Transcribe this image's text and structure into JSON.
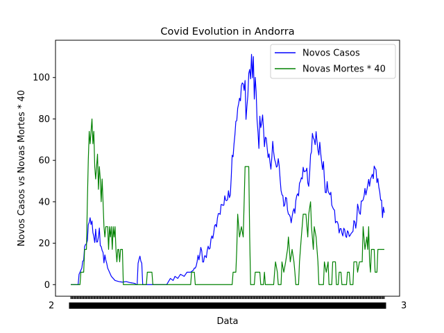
{
  "chart_data": {
    "type": "line",
    "title": "Covid Evolution in Andorra",
    "xlabel": "Data",
    "ylabel": "Novos Casos vs Novas Mortes * 40",
    "ylim": [
      -5.6,
      118
    ],
    "yticks": [
      0,
      20,
      40,
      60,
      80,
      100
    ],
    "x_count": 341,
    "x_tick_labels_overlapping": true,
    "x_tick_label_edge_left": "2",
    "x_tick_label_edge_right": "3",
    "legend_position": "upper-right",
    "grid": false,
    "series": [
      {
        "name": "Novos Casos",
        "color": "#0000ff",
        "anchors": [
          [
            0,
            0
          ],
          [
            8,
            0
          ],
          [
            9,
            5
          ],
          [
            12,
            8
          ],
          [
            15,
            17
          ],
          [
            17,
            20
          ],
          [
            20,
            30
          ],
          [
            21,
            33
          ],
          [
            23,
            28
          ],
          [
            25,
            24
          ],
          [
            26,
            21
          ],
          [
            27,
            24
          ],
          [
            29,
            21
          ],
          [
            31,
            25
          ],
          [
            33,
            18
          ],
          [
            35,
            14
          ],
          [
            37,
            13
          ],
          [
            40,
            8
          ],
          [
            44,
            4
          ],
          [
            48,
            2
          ],
          [
            52,
            1.5
          ],
          [
            56,
            1.2
          ],
          [
            60,
            1.5
          ],
          [
            64,
            1
          ],
          [
            68,
            0.7
          ],
          [
            70,
            0.5
          ],
          [
            71,
            0
          ],
          [
            72,
            0
          ],
          [
            73,
            12
          ],
          [
            77,
            12
          ],
          [
            78,
            0
          ],
          [
            104,
            0
          ],
          [
            108,
            3
          ],
          [
            111,
            2
          ],
          [
            113,
            4
          ],
          [
            116,
            3
          ],
          [
            119,
            5
          ],
          [
            123,
            4
          ],
          [
            126,
            6
          ],
          [
            130,
            6
          ],
          [
            133,
            7
          ],
          [
            138,
            12
          ],
          [
            141,
            17
          ],
          [
            144,
            11
          ],
          [
            147,
            15
          ],
          [
            151,
            19
          ],
          [
            154,
            24
          ],
          [
            158,
            30
          ],
          [
            162,
            36
          ],
          [
            166,
            40
          ],
          [
            170,
            42
          ],
          [
            173,
            44
          ],
          [
            175,
            60
          ],
          [
            178,
            72
          ],
          [
            180,
            82
          ],
          [
            183,
            89
          ],
          [
            186,
            97
          ],
          [
            189,
            96
          ],
          [
            190,
            80
          ],
          [
            192,
            93
          ],
          [
            194,
            105
          ],
          [
            195,
            100
          ],
          [
            196,
            112
          ],
          [
            197,
            97
          ],
          [
            198,
            112
          ],
          [
            199,
            90
          ],
          [
            200,
            100
          ],
          [
            202,
            82
          ],
          [
            204,
            65
          ],
          [
            205,
            80
          ],
          [
            207,
            77
          ],
          [
            208,
            81
          ],
          [
            210,
            69
          ],
          [
            212,
            70
          ],
          [
            214,
            63
          ],
          [
            217,
            57
          ],
          [
            219,
            67
          ],
          [
            221,
            62
          ],
          [
            223,
            55
          ],
          [
            225,
            62
          ],
          [
            227,
            50
          ],
          [
            229,
            44
          ],
          [
            231,
            38
          ],
          [
            233,
            42
          ],
          [
            236,
            35
          ],
          [
            238,
            31
          ],
          [
            240,
            33
          ],
          [
            243,
            37
          ],
          [
            245,
            42
          ],
          [
            248,
            47
          ],
          [
            250,
            52
          ],
          [
            253,
            55
          ],
          [
            255,
            56
          ],
          [
            258,
            48
          ],
          [
            260,
            60
          ],
          [
            262,
            73
          ],
          [
            264,
            68
          ],
          [
            266,
            73
          ],
          [
            268,
            64
          ],
          [
            270,
            67
          ],
          [
            272,
            59
          ],
          [
            274,
            57
          ],
          [
            276,
            45
          ],
          [
            278,
            47
          ],
          [
            281,
            44
          ],
          [
            284,
            38
          ],
          [
            287,
            32
          ],
          [
            290,
            28
          ],
          [
            294,
            25
          ],
          [
            296,
            26
          ],
          [
            299,
            24
          ],
          [
            302,
            25
          ],
          [
            304,
            23
          ],
          [
            307,
            30
          ],
          [
            309,
            28
          ],
          [
            311,
            37
          ],
          [
            314,
            35
          ],
          [
            316,
            41
          ],
          [
            320,
            45
          ],
          [
            324,
            50
          ],
          [
            327,
            52
          ],
          [
            329,
            56
          ],
          [
            331,
            55
          ],
          [
            333,
            49
          ],
          [
            336,
            43
          ],
          [
            338,
            33
          ],
          [
            339,
            38
          ],
          [
            340,
            36
          ]
        ]
      },
      {
        "name": "Novas Mortes * 40",
        "color": "#008000",
        "anchors": [
          [
            0,
            0
          ],
          [
            10,
            0
          ],
          [
            11,
            6
          ],
          [
            14,
            6
          ],
          [
            15,
            17
          ],
          [
            17,
            17
          ],
          [
            18,
            40
          ],
          [
            19,
            60
          ],
          [
            20,
            74
          ],
          [
            21,
            68
          ],
          [
            22,
            74
          ],
          [
            23,
            80
          ],
          [
            24,
            68
          ],
          [
            25,
            74
          ],
          [
            26,
            57
          ],
          [
            27,
            51
          ],
          [
            28,
            57
          ],
          [
            29,
            63
          ],
          [
            30,
            46
          ],
          [
            31,
            57
          ],
          [
            32,
            51
          ],
          [
            33,
            40
          ],
          [
            34,
            51
          ],
          [
            35,
            40
          ],
          [
            36,
            28
          ],
          [
            37,
            23
          ],
          [
            38,
            28
          ],
          [
            40,
            28
          ],
          [
            41,
            17
          ],
          [
            42,
            28
          ],
          [
            43,
            23
          ],
          [
            44,
            28
          ],
          [
            45,
            17
          ],
          [
            46,
            28
          ],
          [
            47,
            23
          ],
          [
            48,
            28
          ],
          [
            49,
            17
          ],
          [
            50,
            11
          ],
          [
            51,
            17
          ],
          [
            52,
            17
          ],
          [
            53,
            11
          ],
          [
            54,
            17
          ],
          [
            56,
            17
          ],
          [
            57,
            0
          ],
          [
            82,
            0
          ],
          [
            83,
            6
          ],
          [
            88,
            6
          ],
          [
            89,
            0
          ],
          [
            130,
            0
          ],
          [
            131,
            6
          ],
          [
            134,
            6
          ],
          [
            135,
            0
          ],
          [
            175,
            0
          ],
          [
            176,
            6
          ],
          [
            179,
            6
          ],
          [
            180,
            17
          ],
          [
            181,
            34
          ],
          [
            183,
            23
          ],
          [
            185,
            28
          ],
          [
            187,
            23
          ],
          [
            189,
            57
          ],
          [
            193,
            57
          ],
          [
            194,
            23
          ],
          [
            195,
            0
          ],
          [
            199,
            0
          ],
          [
            200,
            6
          ],
          [
            205,
            6
          ],
          [
            206,
            0
          ],
          [
            209,
            0
          ],
          [
            210,
            6
          ],
          [
            211,
            0
          ],
          [
            220,
            0
          ],
          [
            221,
            6
          ],
          [
            222,
            11
          ],
          [
            224,
            6
          ],
          [
            225,
            0
          ],
          [
            228,
            0
          ],
          [
            229,
            11
          ],
          [
            231,
            6
          ],
          [
            233,
            11
          ],
          [
            235,
            17
          ],
          [
            236,
            23
          ],
          [
            237,
            17
          ],
          [
            238,
            11
          ],
          [
            240,
            17
          ],
          [
            242,
            11
          ],
          [
            243,
            6
          ],
          [
            244,
            0
          ],
          [
            247,
            0
          ],
          [
            248,
            11
          ],
          [
            250,
            23
          ],
          [
            252,
            34
          ],
          [
            255,
            34
          ],
          [
            257,
            23
          ],
          [
            258,
            34
          ],
          [
            260,
            40
          ],
          [
            261,
            28
          ],
          [
            263,
            17
          ],
          [
            264,
            28
          ],
          [
            266,
            23
          ],
          [
            268,
            11
          ],
          [
            269,
            0
          ],
          [
            274,
            0
          ],
          [
            275,
            11
          ],
          [
            277,
            6
          ],
          [
            279,
            11
          ],
          [
            280,
            0
          ],
          [
            283,
            0
          ],
          [
            284,
            11
          ],
          [
            287,
            11
          ],
          [
            288,
            0
          ],
          [
            290,
            0
          ],
          [
            291,
            6
          ],
          [
            293,
            6
          ],
          [
            294,
            0
          ],
          [
            299,
            0
          ],
          [
            300,
            6
          ],
          [
            302,
            6
          ],
          [
            303,
            0
          ],
          [
            306,
            0
          ],
          [
            307,
            11
          ],
          [
            310,
            11
          ],
          [
            311,
            6
          ],
          [
            313,
            11
          ],
          [
            316,
            11
          ],
          [
            317,
            28
          ],
          [
            319,
            17
          ],
          [
            321,
            23
          ],
          [
            322,
            17
          ],
          [
            323,
            28
          ],
          [
            324,
            11
          ],
          [
            325,
            6
          ],
          [
            326,
            17
          ],
          [
            329,
            17
          ],
          [
            330,
            6
          ],
          [
            332,
            6
          ],
          [
            333,
            17
          ],
          [
            340,
            17
          ]
        ]
      }
    ]
  }
}
